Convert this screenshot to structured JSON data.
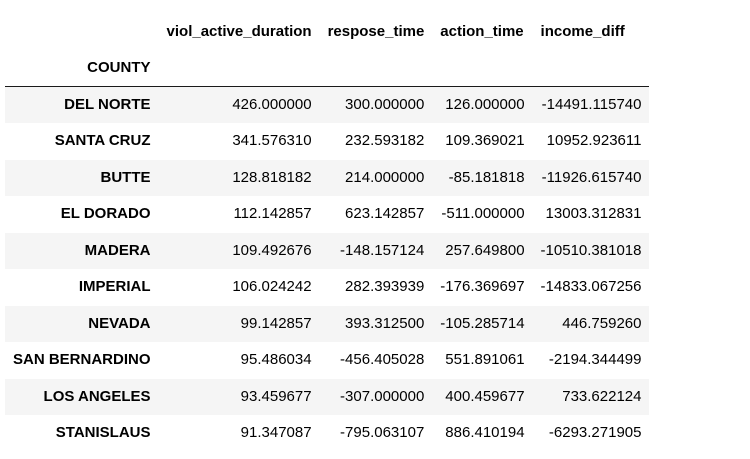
{
  "table": {
    "index_name": "COUNTY",
    "columns": [
      "viol_active_duration",
      "respose_time",
      "action_time",
      "income_diff"
    ],
    "rows": [
      {
        "county": "DEL NORTE",
        "values": [
          "426.000000",
          "300.000000",
          "126.000000",
          "-14491.115740"
        ]
      },
      {
        "county": "SANTA CRUZ",
        "values": [
          "341.576310",
          "232.593182",
          "109.369021",
          "10952.923611"
        ]
      },
      {
        "county": "BUTTE",
        "values": [
          "128.818182",
          "214.000000",
          "-85.181818",
          "-11926.615740"
        ]
      },
      {
        "county": "EL DORADO",
        "values": [
          "112.142857",
          "623.142857",
          "-511.000000",
          "13003.312831"
        ]
      },
      {
        "county": "MADERA",
        "values": [
          "109.492676",
          "-148.157124",
          "257.649800",
          "-10510.381018"
        ]
      },
      {
        "county": "IMPERIAL",
        "values": [
          "106.024242",
          "282.393939",
          "-176.369697",
          "-14833.067256"
        ]
      },
      {
        "county": "NEVADA",
        "values": [
          "99.142857",
          "393.312500",
          "-105.285714",
          "446.759260"
        ]
      },
      {
        "county": "SAN BERNARDINO",
        "values": [
          "95.486034",
          "-456.405028",
          "551.891061",
          "-2194.344499"
        ]
      },
      {
        "county": "LOS ANGELES",
        "values": [
          "93.459677",
          "-307.000000",
          "400.459677",
          "733.622124"
        ]
      },
      {
        "county": "STANISLAUS",
        "values": [
          "91.347087",
          "-795.063107",
          "886.410194",
          "-6293.271905"
        ]
      }
    ]
  }
}
